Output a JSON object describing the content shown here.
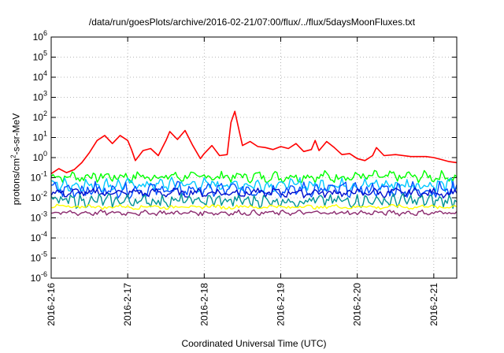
{
  "chart_data": {
    "type": "line",
    "title": "/data/run/goesPlots/archive/2016-02-21/07:00/flux/../flux/5daysMoonFluxes.txt",
    "xlabel": "Coordinated Universal Time (UTC)",
    "ylabel": {
      "prefix": "protons/cm",
      "sup": "2",
      "suffix": "-s-sr-MeV"
    },
    "y_scale": "log",
    "y_ticks_exp": [
      -6,
      -5,
      -4,
      -3,
      -2,
      -1,
      0,
      1,
      2,
      3,
      4,
      5,
      6
    ],
    "x_tick_labels": [
      "2016-2-16",
      "2016-2-17",
      "2016-2-18",
      "2016-2-19",
      "2016-2-20",
      "2016-2-21"
    ],
    "x_range_days": [
      0,
      5.3
    ],
    "ylim_exp": [
      -6,
      6
    ],
    "grid": true,
    "series": [
      {
        "color": "#ff0000",
        "values": [
          [
            0.0,
            -0.8
          ],
          [
            0.1,
            -0.55
          ],
          [
            0.2,
            -0.75
          ],
          [
            0.3,
            -0.6
          ],
          [
            0.4,
            -0.25
          ],
          [
            0.5,
            0.25
          ],
          [
            0.6,
            0.85
          ],
          [
            0.7,
            1.1
          ],
          [
            0.8,
            0.7
          ],
          [
            0.9,
            1.1
          ],
          [
            1.0,
            0.85
          ],
          [
            1.05,
            0.4
          ],
          [
            1.1,
            -0.15
          ],
          [
            1.2,
            0.35
          ],
          [
            1.3,
            0.45
          ],
          [
            1.4,
            0.1
          ],
          [
            1.5,
            0.85
          ],
          [
            1.55,
            1.3
          ],
          [
            1.65,
            0.9
          ],
          [
            1.75,
            1.35
          ],
          [
            1.85,
            0.6
          ],
          [
            1.95,
            -0.05
          ],
          [
            2.0,
            0.2
          ],
          [
            2.1,
            0.6
          ],
          [
            2.2,
            0.1
          ],
          [
            2.3,
            0.15
          ],
          [
            2.35,
            1.75
          ],
          [
            2.4,
            2.3
          ],
          [
            2.5,
            0.6
          ],
          [
            2.6,
            0.8
          ],
          [
            2.7,
            0.55
          ],
          [
            2.8,
            0.5
          ],
          [
            2.9,
            0.4
          ],
          [
            3.0,
            0.55
          ],
          [
            3.1,
            0.45
          ],
          [
            3.2,
            0.7
          ],
          [
            3.3,
            0.3
          ],
          [
            3.4,
            0.4
          ],
          [
            3.45,
            0.85
          ],
          [
            3.5,
            0.35
          ],
          [
            3.6,
            0.8
          ],
          [
            3.7,
            0.5
          ],
          [
            3.8,
            0.15
          ],
          [
            3.9,
            0.2
          ],
          [
            4.0,
            -0.05
          ],
          [
            4.1,
            -0.15
          ],
          [
            4.2,
            0.1
          ],
          [
            4.25,
            0.5
          ],
          [
            4.35,
            0.1
          ],
          [
            4.5,
            0.15
          ],
          [
            4.7,
            0.05
          ],
          [
            4.9,
            0.05
          ],
          [
            5.0,
            0.0
          ],
          [
            5.1,
            -0.1
          ],
          [
            5.2,
            -0.2
          ],
          [
            5.3,
            -0.25
          ]
        ]
      },
      {
        "color": "#00ff00",
        "base": -0.95,
        "amp": 0.25,
        "period": 0.11
      },
      {
        "color": "#00c8ff",
        "base": -1.35,
        "amp": 0.3,
        "period": 0.07
      },
      {
        "color": "#0050ff",
        "base": -1.6,
        "amp": 0.35,
        "period": 0.09
      },
      {
        "color": "#000ccc",
        "base": -1.75,
        "amp": 0.2,
        "period": 0.13
      },
      {
        "color": "#009494",
        "base": -2.15,
        "amp": 0.3,
        "period": 0.06
      },
      {
        "color": "#ffff00",
        "base": -2.45,
        "amp": 0.1,
        "period": 0.2
      },
      {
        "color": "#8b2a6e",
        "base": -2.75,
        "amp": 0.12,
        "period": 0.1
      }
    ]
  }
}
